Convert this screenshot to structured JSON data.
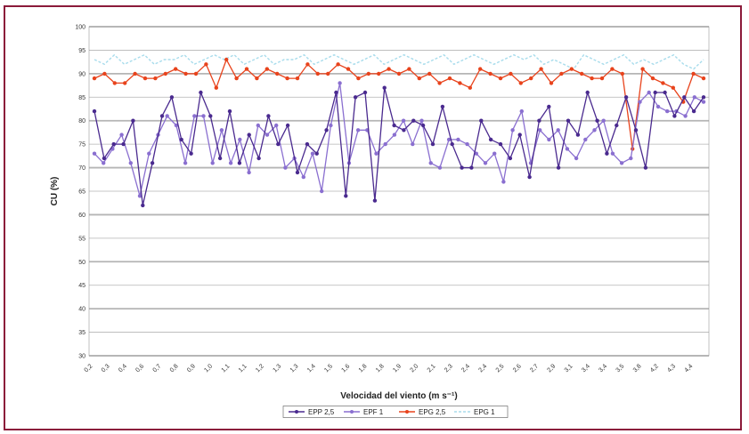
{
  "colors": {
    "frame": "#8b1a3a",
    "epp25": "#4a2a8f",
    "epp1": "#8a6fd0",
    "epg25": "#e8431c",
    "epg1": "#a8dcec"
  },
  "chart_data": {
    "type": "line",
    "xlabel": "Velocidad del viento (m s⁻¹)",
    "ylabel": "CU (%)",
    "ylim": [
      30,
      100
    ],
    "yticks": [
      30,
      35,
      40,
      45,
      50,
      55,
      60,
      65,
      70,
      75,
      80,
      85,
      90,
      95,
      100
    ],
    "yticks_display": [
      "30",
      "35",
      "40",
      "45",
      "50",
      "55",
      "60",
      "65",
      "70",
      "75",
      "80",
      "85",
      "90",
      "95",
      "100"
    ],
    "xtick_labels": [
      "0,2",
      "0,3",
      "0,4",
      "0,6",
      "0,7",
      "0,8",
      "0,9",
      "1,0",
      "1,1",
      "1,1",
      "1,2",
      "1,3",
      "1,3",
      "1,4",
      "1,5",
      "1,6",
      "1,8",
      "1,8",
      "1,9",
      "2,0",
      "2,1",
      "2,3",
      "2,4",
      "2,4",
      "2,5",
      "2,6",
      "2,7",
      "2,9",
      "3,1",
      "3,4",
      "3,4",
      "3,5",
      "3,8",
      "4,2",
      "4,3",
      "4,4"
    ],
    "grid": true,
    "legend_position": "bottom",
    "series": [
      {
        "name": "EPP 2,5",
        "values": [
          82,
          72,
          75,
          75,
          80,
          62,
          71,
          81,
          85,
          76,
          73,
          86,
          81,
          72,
          82,
          71,
          77,
          72,
          81,
          75,
          79,
          69,
          75,
          73,
          78,
          86,
          64,
          85,
          86,
          63,
          87,
          79,
          78,
          80,
          79,
          75,
          83,
          75,
          70,
          70,
          80,
          76,
          75,
          72,
          77,
          68,
          80,
          83,
          70,
          80,
          77,
          86,
          80,
          73,
          79,
          85,
          78,
          70,
          86,
          86,
          81,
          85,
          82,
          85
        ]
      },
      {
        "name": "EPF 1",
        "values": [
          73,
          71,
          74,
          77,
          71,
          64,
          73,
          77,
          81,
          79,
          71,
          81,
          81,
          71,
          78,
          71,
          76,
          69,
          79,
          77,
          79,
          70,
          72,
          68,
          73,
          65,
          79,
          88,
          71,
          78,
          78,
          73,
          75,
          77,
          80,
          75,
          80,
          71,
          70,
          76,
          76,
          75,
          73,
          71,
          73,
          67,
          78,
          82,
          71,
          78,
          76,
          78,
          74,
          72,
          76,
          78,
          80,
          73,
          71,
          72,
          84,
          86,
          83,
          82,
          82,
          81,
          85,
          84
        ]
      },
      {
        "name": "EPG 2,5",
        "values": [
          89,
          90,
          88,
          88,
          90,
          89,
          89,
          90,
          91,
          90,
          90,
          92,
          87,
          93,
          89,
          91,
          89,
          91,
          90,
          89,
          89,
          92,
          90,
          90,
          92,
          91,
          89,
          90,
          90,
          91,
          90,
          91,
          89,
          90,
          88,
          89,
          88,
          87,
          91,
          90,
          89,
          90,
          88,
          89,
          91,
          88,
          90,
          91,
          90,
          89,
          89,
          91,
          90,
          74,
          91,
          89,
          88,
          87,
          84,
          90,
          89
        ]
      },
      {
        "name": "EPG 1",
        "values": [
          93,
          92,
          94,
          92,
          93,
          94,
          92,
          93,
          93,
          94,
          92,
          93,
          94,
          93,
          94,
          92,
          93,
          94,
          92,
          93,
          93,
          94,
          92,
          93,
          94,
          93,
          92,
          93,
          94,
          92,
          93,
          94,
          93,
          92,
          93,
          94,
          92,
          93,
          94,
          93,
          92,
          93,
          94,
          93,
          94,
          92,
          93,
          92,
          91,
          94,
          93,
          92,
          93,
          94,
          92,
          93,
          92,
          93,
          94,
          92,
          91,
          93
        ]
      }
    ]
  }
}
